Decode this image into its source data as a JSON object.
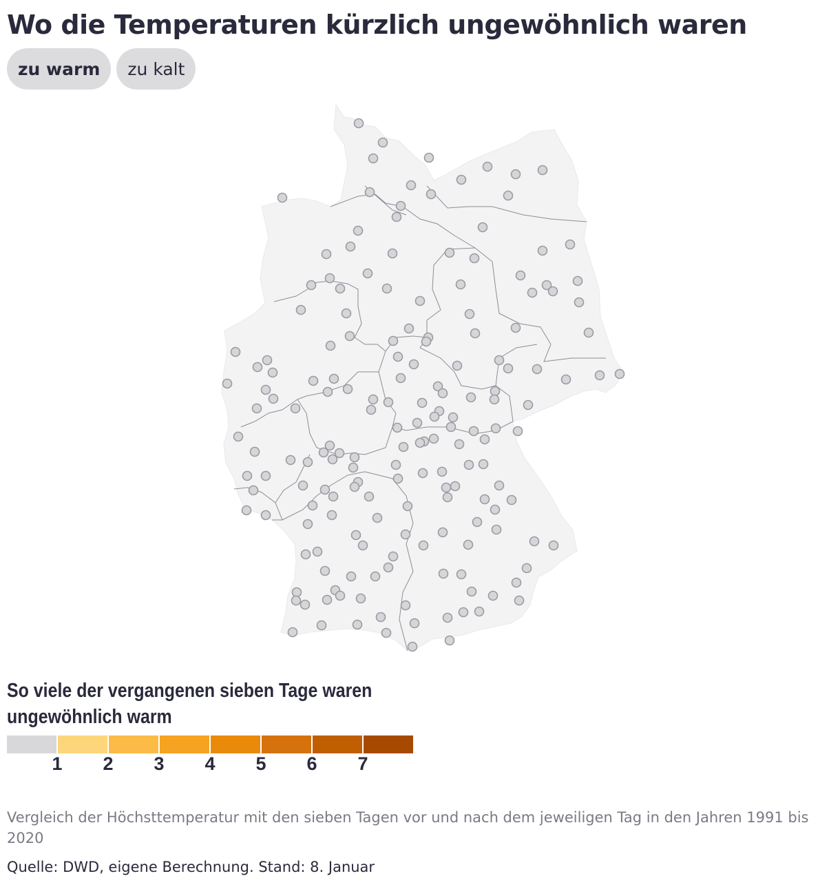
{
  "title": "Wo die Temperaturen kürzlich ungewöhnlich waren",
  "toggle": {
    "warm_label": "zu warm",
    "cold_label": "zu kalt",
    "selected": "warm"
  },
  "map": {
    "region": "Deutschland",
    "land_color": "#f3f3f4",
    "border_color": "#8c8c94",
    "station_fill": "#d6d6d9",
    "station_stroke": "#9a9aa2"
  },
  "legend": {
    "title": "So viele der vergangenen sieben Tage waren ungewöhnlich warm",
    "ticks": [
      "1",
      "2",
      "3",
      "4",
      "5",
      "6",
      "7"
    ],
    "colors": [
      "#d8d8db",
      "#fdd57a",
      "#fbbb46",
      "#f6a322",
      "#ea8a0a",
      "#d5720e",
      "#c05e02",
      "#a84900"
    ]
  },
  "note": "Vergleich der Höchsttemperatur mit den sieben Tagen vor und nach dem jeweiligen Tag in den Jahren 1991 bis 2020",
  "source": "Quelle: DWD, eigene Berechnung. Stand: 8. Januar"
}
